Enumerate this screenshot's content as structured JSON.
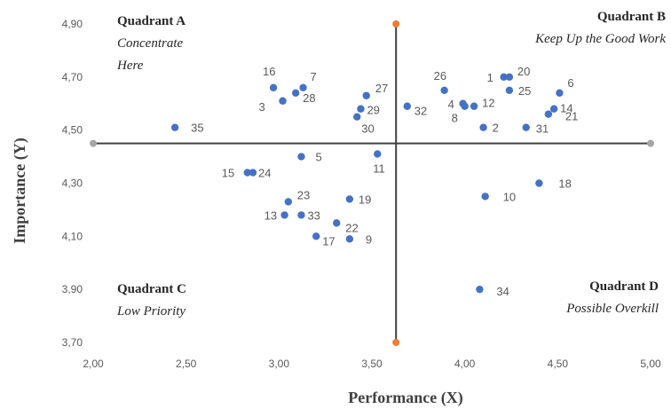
{
  "chart_data": {
    "type": "scatter",
    "xlabel": "Performance (X)",
    "ylabel": "Importance (Y)",
    "xlim": [
      2.0,
      5.0
    ],
    "ylim": [
      3.7,
      4.9
    ],
    "x_ticks": [
      "2,00",
      "2,50",
      "3,00",
      "3,50",
      "4,00",
      "4,50",
      "5,00"
    ],
    "x_tick_values": [
      2.0,
      2.5,
      3.0,
      3.5,
      4.0,
      4.5,
      5.0
    ],
    "y_ticks": [
      "3,70",
      "3,90",
      "4,10",
      "4,30",
      "4,50",
      "4,70",
      "4,90"
    ],
    "y_tick_values": [
      3.7,
      3.9,
      4.1,
      4.3,
      4.5,
      4.7,
      4.9
    ],
    "grid": false,
    "crosshair": {
      "x": 3.63,
      "y": 4.45
    },
    "colors": {
      "points": "#4472C4",
      "axes": "#404040",
      "vertical_endpoints": "#ED7D31",
      "horizontal_endpoints": "#A5A5A5"
    },
    "quadrants": [
      {
        "id": "A",
        "title": "Quadrant A",
        "subtitle": [
          "Concentrate",
          "Here"
        ],
        "position": "top-left"
      },
      {
        "id": "B",
        "title": "Quadrant B",
        "subtitle": [
          "Keep Up the Good Work"
        ],
        "position": "top-right"
      },
      {
        "id": "C",
        "title": "Quadrant C",
        "subtitle": [
          "Low Priority"
        ],
        "position": "bottom-left"
      },
      {
        "id": "D",
        "title": "Quadrant D",
        "subtitle": [
          "Possible Overkill"
        ],
        "position": "bottom-right"
      }
    ],
    "points": [
      {
        "label": "1",
        "x": 4.21,
        "y": 4.7
      },
      {
        "label": "2",
        "x": 4.1,
        "y": 4.51
      },
      {
        "label": "3",
        "x": 3.02,
        "y": 4.61
      },
      {
        "label": "4",
        "x": 3.99,
        "y": 4.6
      },
      {
        "label": "5",
        "x": 3.12,
        "y": 4.4
      },
      {
        "label": "6",
        "x": 4.51,
        "y": 4.64
      },
      {
        "label": "7",
        "x": 3.13,
        "y": 4.66
      },
      {
        "label": "8",
        "x": 4.0,
        "y": 4.59
      },
      {
        "label": "9",
        "x": 3.38,
        "y": 4.09
      },
      {
        "label": "10",
        "x": 4.11,
        "y": 4.25
      },
      {
        "label": "11",
        "x": 3.53,
        "y": 4.41
      },
      {
        "label": "12",
        "x": 4.05,
        "y": 4.59
      },
      {
        "label": "13",
        "x": 3.03,
        "y": 4.18
      },
      {
        "label": "14",
        "x": 4.48,
        "y": 4.58
      },
      {
        "label": "15",
        "x": 2.83,
        "y": 4.34
      },
      {
        "label": "16",
        "x": 2.97,
        "y": 4.66
      },
      {
        "label": "17",
        "x": 3.2,
        "y": 4.1
      },
      {
        "label": "18",
        "x": 4.4,
        "y": 4.3
      },
      {
        "label": "19",
        "x": 3.38,
        "y": 4.24
      },
      {
        "label": "20",
        "x": 4.24,
        "y": 4.7
      },
      {
        "label": "21",
        "x": 4.45,
        "y": 4.56
      },
      {
        "label": "22",
        "x": 3.31,
        "y": 4.15
      },
      {
        "label": "23",
        "x": 3.05,
        "y": 4.23
      },
      {
        "label": "24",
        "x": 2.86,
        "y": 4.34
      },
      {
        "label": "25",
        "x": 4.24,
        "y": 4.65
      },
      {
        "label": "26",
        "x": 3.89,
        "y": 4.65
      },
      {
        "label": "27",
        "x": 3.47,
        "y": 4.63
      },
      {
        "label": "28",
        "x": 3.09,
        "y": 4.64
      },
      {
        "label": "29",
        "x": 3.44,
        "y": 4.58
      },
      {
        "label": "30",
        "x": 3.42,
        "y": 4.55
      },
      {
        "label": "31",
        "x": 4.33,
        "y": 4.51
      },
      {
        "label": "32",
        "x": 3.69,
        "y": 4.59
      },
      {
        "label": "33",
        "x": 3.12,
        "y": 4.18
      },
      {
        "label": "34",
        "x": 4.08,
        "y": 3.9
      },
      {
        "label": "35",
        "x": 2.44,
        "y": 4.51
      }
    ]
  }
}
